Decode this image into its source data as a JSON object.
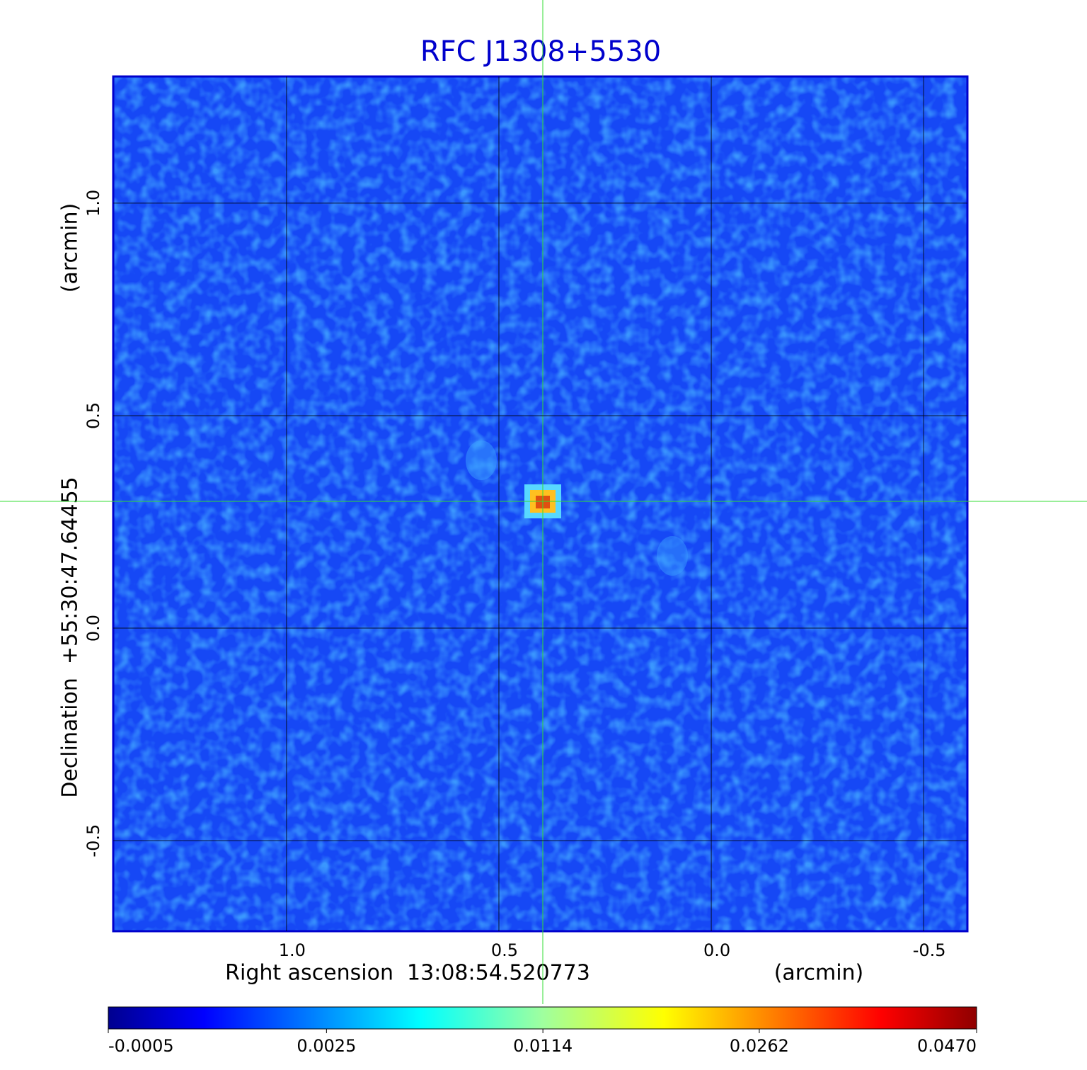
{
  "chart_data": {
    "type": "image",
    "title": "RFC J1308+5530",
    "xlabel": "Right ascension  13:08:54.520773",
    "xunit": "(arcmin)",
    "ylabel": "Declination  +55:30:47.64455",
    "yunit": "(arcmin)",
    "xlim": [
      1.408,
      -0.603
    ],
    "ylim": [
      -0.713,
      1.298
    ],
    "xticks": [
      {
        "value": 1,
        "label": "1.0"
      },
      0.5,
      {
        "value": 0,
        "label": "0.0"
      },
      -0.5
    ],
    "yticks": [
      -0.5,
      {
        "value": 0,
        "label": "0.0"
      },
      0.5,
      {
        "value": 1,
        "label": "1.0"
      }
    ],
    "grid": true,
    "colorbar": {
      "clim": [
        -0.0005,
        0.047
      ],
      "scale": "sqrt",
      "colormap": "jet",
      "ticks": [
        -0.0005,
        0.0025,
        0.0114,
        0.0262,
        {
          "value": 0.047,
          "label": "0.0470"
        }
      ]
    }
  }
}
